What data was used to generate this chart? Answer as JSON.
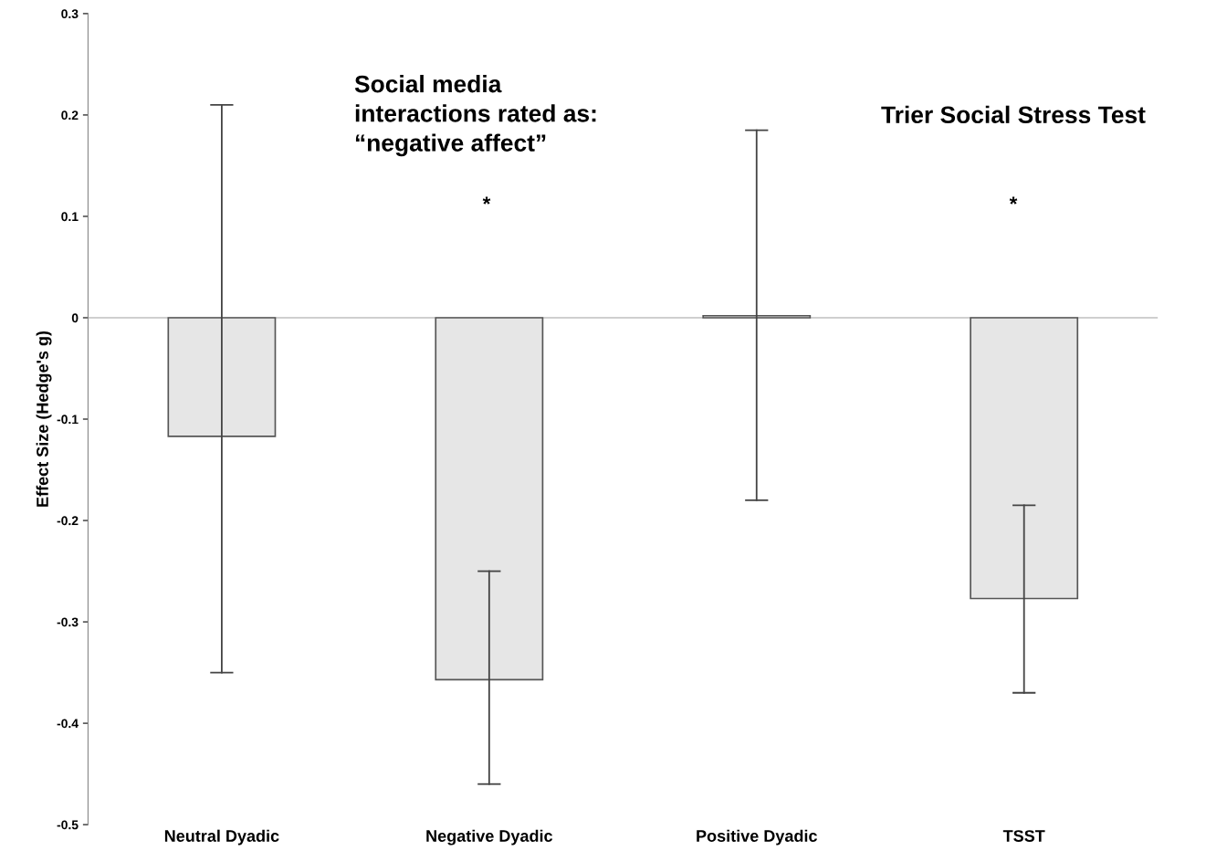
{
  "chart_data": {
    "type": "bar",
    "ylabel": "Effect Size (Hedge's g)",
    "categories": [
      "Neutral Dyadic",
      "Negative Dyadic",
      "Positive Dyadic",
      "TSST"
    ],
    "values": [
      -0.117,
      -0.357,
      0.002,
      -0.277
    ],
    "errors": [
      [
        -0.35,
        0.21
      ],
      [
        -0.46,
        -0.25
      ],
      [
        -0.18,
        0.185
      ],
      [
        -0.37,
        -0.185
      ]
    ],
    "color": "#e6e6e6",
    "ylim": [
      -0.5,
      0.3
    ],
    "yticks": [
      -0.5,
      -0.4,
      -0.3,
      -0.2,
      -0.1,
      0,
      0.1,
      0.2,
      0.3
    ],
    "ref_lines": [
      {
        "axis": "y",
        "value": 0,
        "color": "#bfbfbf"
      }
    ],
    "annotations": [
      "*",
      "*",
      "Social media\ninteractions rated as:\n“negative affect”",
      "Trier Social Stress Test"
    ],
    "grid": false,
    "legend": false
  }
}
